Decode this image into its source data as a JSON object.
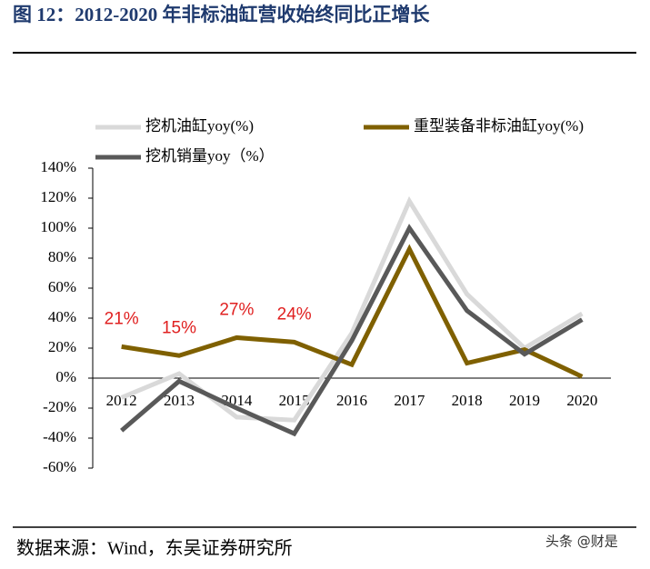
{
  "header": {
    "title": "图 12：2012-2020 年非标油缸营收始终同比正增长"
  },
  "chart_data": {
    "type": "line",
    "categories": [
      "2012",
      "2013",
      "2014",
      "2015",
      "2016",
      "2017",
      "2018",
      "2019",
      "2020"
    ],
    "series": [
      {
        "name": "挖机油缸yoy(%)",
        "color": "#d9d9d9",
        "values": [
          -13,
          3,
          -26,
          -28,
          30,
          118,
          56,
          20,
          43
        ]
      },
      {
        "name": "重型装备非标油缸yoy(%)",
        "color": "#7f6000",
        "values": [
          21,
          15,
          27,
          24,
          9,
          86,
          10,
          19,
          1
        ],
        "value_labels": [
          "21%",
          "15%",
          "27%",
          "24%",
          null,
          null,
          null,
          null,
          null
        ]
      },
      {
        "name": "挖机销量yoy（%）",
        "color": "#595959",
        "values": [
          -35,
          -2,
          -20,
          -37,
          25,
          100,
          45,
          16,
          39
        ]
      }
    ],
    "ylim": [
      -60,
      140
    ],
    "yticks": [
      {
        "value": -60,
        "label": "-60%"
      },
      {
        "value": -40,
        "label": "-40%"
      },
      {
        "value": -20,
        "label": "-20%"
      },
      {
        "value": 0,
        "label": "0%"
      },
      {
        "value": 20,
        "label": "20%"
      },
      {
        "value": 40,
        "label": "40%"
      },
      {
        "value": 60,
        "label": "60%"
      },
      {
        "value": 80,
        "label": "80%"
      },
      {
        "value": 100,
        "label": "100%"
      },
      {
        "value": 120,
        "label": "120%"
      },
      {
        "value": 140,
        "label": "140%"
      }
    ],
    "value_label_color": "#e02020"
  },
  "footer": {
    "source": "数据来源：Wind，东吴证券研究所",
    "watermark": "头条 @财是"
  }
}
